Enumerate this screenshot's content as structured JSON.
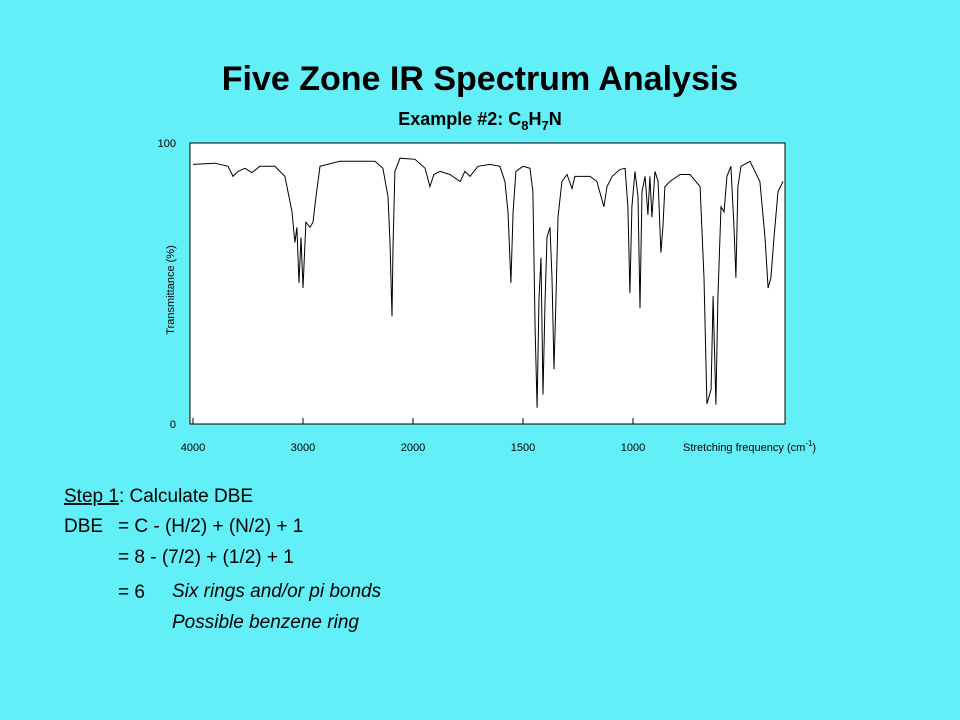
{
  "slide": {
    "title": "Five Zone IR Spectrum Analysis",
    "subtitle": [
      "Example #2: C",
      "8",
      "H",
      "7",
      "N"
    ]
  },
  "chart_data": {
    "type": "line",
    "color": "#000000",
    "y_label": "Transmittance (%)",
    "x_label": [
      "Stretching frequency (cm",
      "-1",
      ")"
    ],
    "x_scale": "piecewise",
    "x_break": 2000,
    "x_break_factor": 2,
    "xlim": [
      4027,
      309
    ],
    "xticks": [
      4000,
      3000,
      2000,
      1500,
      1000
    ],
    "ylim": [
      0,
      100
    ],
    "yticks": [
      0,
      100
    ],
    "x": [
      4000,
      3800,
      3682,
      3636,
      3591,
      3527,
      3464,
      3391,
      3255,
      3164,
      3100,
      3073,
      3055,
      3036,
      3018,
      3000,
      2973,
      2936,
      2909,
      2882,
      2845,
      2664,
      2345,
      2273,
      2227,
      2209,
      2191,
      2182,
      2164,
      2118,
      1991,
      1945,
      1923,
      1905,
      1877,
      1832,
      1786,
      1764,
      1741,
      1705,
      1650,
      1605,
      1582,
      1568,
      1555,
      1545,
      1532,
      1500,
      1468,
      1455,
      1445,
      1436,
      1427,
      1418,
      1409,
      1400,
      1391,
      1377,
      1368,
      1359,
      1350,
      1341,
      1323,
      1300,
      1277,
      1264,
      1195,
      1164,
      1145,
      1132,
      1118,
      1095,
      1059,
      1036,
      1023,
      1014,
      1005,
      991,
      977,
      968,
      959,
      945,
      932,
      923,
      914,
      900,
      886,
      873,
      864,
      855,
      832,
      786,
      741,
      695,
      677,
      664,
      645,
      636,
      623,
      614,
      600,
      586,
      573,
      555,
      541,
      532,
      523,
      509,
      468,
      423,
      400,
      386,
      373,
      359,
      341,
      318
    ],
    "values": [
      92.4,
      92.8,
      91.7,
      88.1,
      89.9,
      91.0,
      89.5,
      91.7,
      91.7,
      88.1,
      75.5,
      64.6,
      70.0,
      50.2,
      66.4,
      48.4,
      71.8,
      70.0,
      71.8,
      80.9,
      91.7,
      93.5,
      93.5,
      91.0,
      80.9,
      64.6,
      38.3,
      62.8,
      89.9,
      94.6,
      94.2,
      91.0,
      84.5,
      88.8,
      89.9,
      88.8,
      86.3,
      89.9,
      88.1,
      91.7,
      92.4,
      91.7,
      86.3,
      75.5,
      50.2,
      75.5,
      89.9,
      91.7,
      91.0,
      82.7,
      33.9,
      5.8,
      44.8,
      59.2,
      10.5,
      43.0,
      66.4,
      70.0,
      52.0,
      19.5,
      44.8,
      73.6,
      86.3,
      88.8,
      83.8,
      88.1,
      88.1,
      86.3,
      80.9,
      77.3,
      84.5,
      88.1,
      90.6,
      91.0,
      77.3,
      46.6,
      77.3,
      89.9,
      80.9,
      41.2,
      82.7,
      88.1,
      74.4,
      88.1,
      73.6,
      89.9,
      86.3,
      61.0,
      70.0,
      84.5,
      86.3,
      88.8,
      88.8,
      84.5,
      52.0,
      7.2,
      12.3,
      45.5,
      6.9,
      44.8,
      77.3,
      75.5,
      88.1,
      91.7,
      70.0,
      52.0,
      84.5,
      91.7,
      93.5,
      86.3,
      66.4,
      48.4,
      52.0,
      66.4,
      82.7,
      86.3
    ]
  },
  "notes": {
    "step_label": "Step 1",
    "step_text": ": Calculate DBE",
    "formula_label": "DBE",
    "formula_lines": [
      "= C - (H/2) + (N/2) + 1",
      "= 8 - (7/2) + (1/2) + 1",
      "= 6"
    ],
    "comments": [
      "Six rings and/or pi bonds",
      "Possible benzene ring"
    ]
  }
}
